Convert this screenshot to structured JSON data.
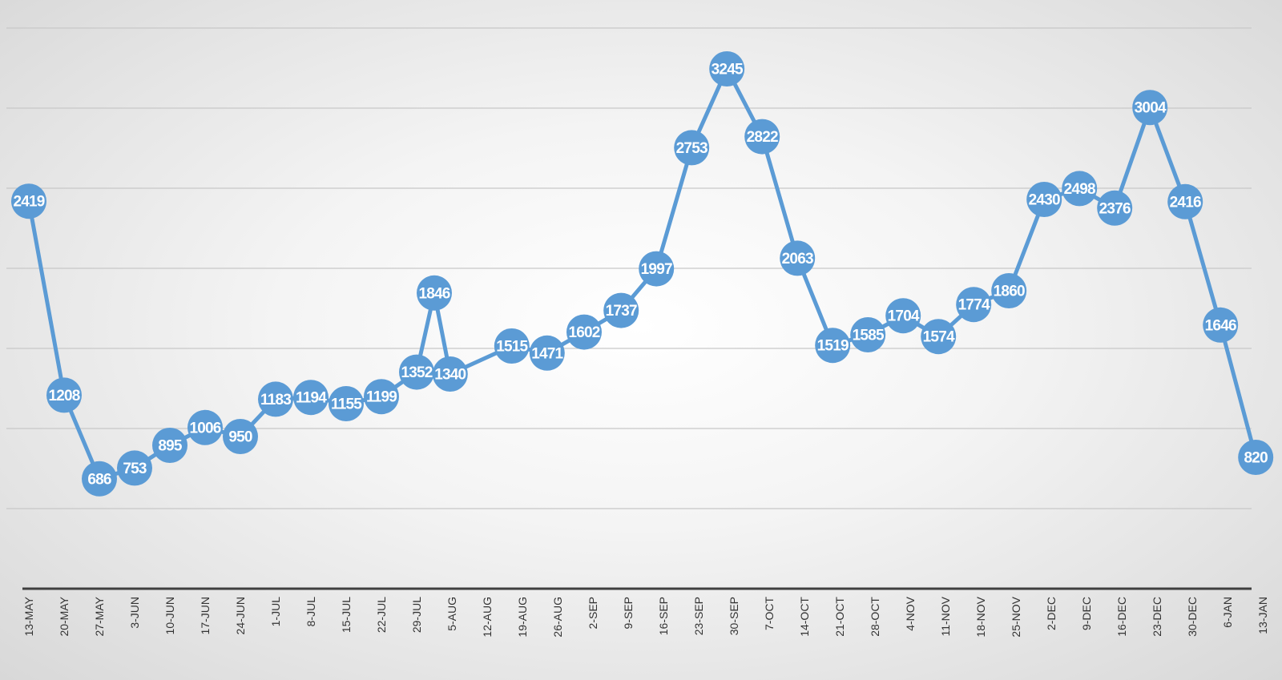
{
  "chart_data": {
    "type": "line",
    "title": "",
    "xlabel": "",
    "ylabel": "",
    "categories": [
      "13-MAY",
      "20-MAY",
      "27-MAY",
      "3-JUN",
      "10-JUN",
      "17-JUN",
      "24-JUN",
      "1-JUL",
      "8-JUL",
      "15-JUL",
      "22-JUL",
      "29-JUL",
      "5-AUG",
      "12-AUG",
      "19-AUG",
      "26-AUG",
      "2-SEP",
      "9-SEP",
      "16-SEP",
      "23-SEP",
      "30-SEP",
      "7-OCT",
      "14-OCT",
      "21-OCT",
      "28-OCT",
      "4-NOV",
      "11-NOV",
      "18-NOV",
      "25-NOV",
      "2-DEC",
      "9-DEC",
      "16-DEC",
      "23-DEC",
      "30-DEC",
      "6-JAN",
      "13-JAN"
    ],
    "points": [
      {
        "x": 0,
        "y": 2419
      },
      {
        "x": 1,
        "y": 1208
      },
      {
        "x": 2,
        "y": 686
      },
      {
        "x": 3,
        "y": 753
      },
      {
        "x": 4,
        "y": 895
      },
      {
        "x": 5,
        "y": 1006
      },
      {
        "x": 6,
        "y": 950
      },
      {
        "x": 7,
        "y": 1183
      },
      {
        "x": 8,
        "y": 1194
      },
      {
        "x": 9,
        "y": 1155
      },
      {
        "x": 10,
        "y": 1199
      },
      {
        "x": 11,
        "y": 1352
      },
      {
        "x": 11.5,
        "y": 1846
      },
      {
        "x": 11.95,
        "y": 1340
      },
      {
        "x": 13.7,
        "y": 1515
      },
      {
        "x": 14.7,
        "y": 1471
      },
      {
        "x": 15.75,
        "y": 1602
      },
      {
        "x": 16.8,
        "y": 1737
      },
      {
        "x": 17.8,
        "y": 1997
      },
      {
        "x": 18.8,
        "y": 2753
      },
      {
        "x": 19.8,
        "y": 3245
      },
      {
        "x": 20.8,
        "y": 2822
      },
      {
        "x": 21.8,
        "y": 2063
      },
      {
        "x": 22.8,
        "y": 1519
      },
      {
        "x": 23.8,
        "y": 1585
      },
      {
        "x": 24.8,
        "y": 1704
      },
      {
        "x": 25.8,
        "y": 1574
      },
      {
        "x": 26.8,
        "y": 1774
      },
      {
        "x": 27.8,
        "y": 1860
      },
      {
        "x": 28.8,
        "y": 2430
      },
      {
        "x": 29.8,
        "y": 2498
      },
      {
        "x": 30.8,
        "y": 2376
      },
      {
        "x": 31.8,
        "y": 3004
      },
      {
        "x": 32.8,
        "y": 2416
      },
      {
        "x": 33.8,
        "y": 1646
      },
      {
        "x": 34.8,
        "y": 820
      }
    ],
    "ylim": [
      0,
      3500
    ],
    "grid": true,
    "legend": "none",
    "colors": {
      "line": "#5b9bd5",
      "marker": "#5b9bd5",
      "label": "#ffffff",
      "grid": "#c8c8c8",
      "axis": "#3f3f3f",
      "tick": "#333333"
    }
  }
}
